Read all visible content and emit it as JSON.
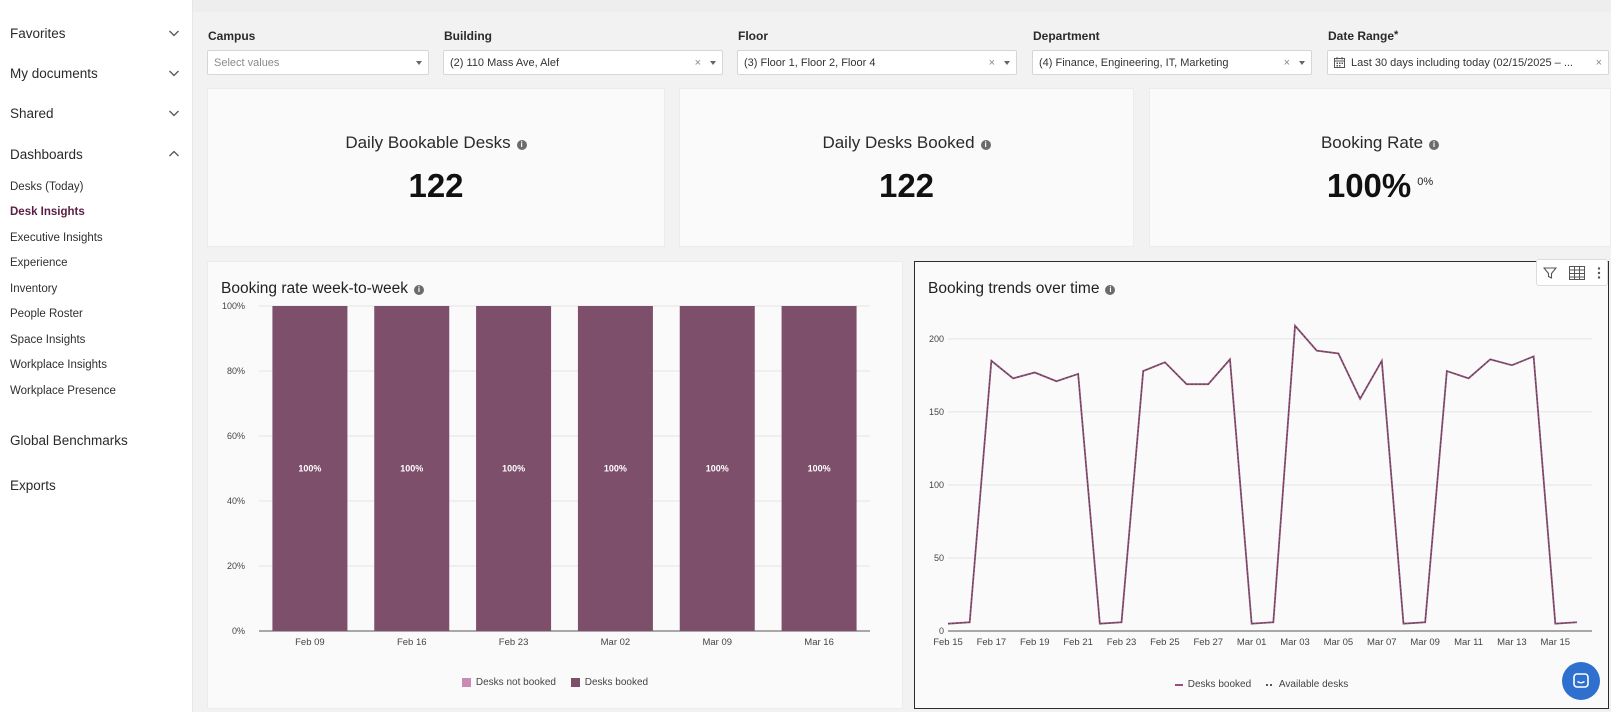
{
  "sidebar": {
    "sections": [
      {
        "label": "Favorites",
        "expanded": false
      },
      {
        "label": "My documents",
        "expanded": false
      },
      {
        "label": "Shared",
        "expanded": false
      },
      {
        "label": "Dashboards",
        "expanded": true
      }
    ],
    "dashboards": [
      "Desks (Today)",
      "Desk Insights",
      "Executive Insights",
      "Experience",
      "Inventory",
      "People Roster",
      "Space Insights",
      "Workplace Insights",
      "Workplace Presence"
    ],
    "active_dashboard": "Desk Insights",
    "global_benchmarks": "Global Benchmarks",
    "exports": "Exports"
  },
  "filters": [
    {
      "label": "Campus",
      "value": "",
      "placeholder": "Select values",
      "clearable": false
    },
    {
      "label": "Building",
      "value": "(2) 110 Mass Ave, Alef",
      "clearable": true
    },
    {
      "label": "Floor",
      "value": "(3) Floor 1, Floor 2, Floor 4",
      "clearable": true
    },
    {
      "label": "Department",
      "value": "(4) Finance, Engineering, IT, Marketing",
      "clearable": true
    },
    {
      "label": "Date Range",
      "required_mark": "*",
      "value": "Last 30 days including today (02/15/2025 – ...",
      "clearable": true
    }
  ],
  "kpis": [
    {
      "title": "Daily Bookable Desks",
      "value": "122"
    },
    {
      "title": "Daily Desks Booked",
      "value": "122"
    },
    {
      "title": "Booking Rate",
      "value": "100%",
      "delta": "0%"
    }
  ],
  "colors": {
    "desks_booked": "#7d4f6b",
    "desks_not_booked": "#c98bb2",
    "accent": "#5a1e44",
    "chat": "#2f6fce"
  },
  "charts": {
    "weekly": {
      "title": "Booking rate week-to-week"
    },
    "trend": {
      "title": "Booking trends over time"
    }
  },
  "chart_data": [
    {
      "type": "bar",
      "title": "Booking rate week-to-week",
      "categories": [
        "Feb 09",
        "Feb 16",
        "Feb 23",
        "Mar 02",
        "Mar 09",
        "Mar 16"
      ],
      "series": [
        {
          "name": "Desks not booked",
          "values": [
            0,
            0,
            0,
            0,
            0,
            0
          ]
        },
        {
          "name": "Desks booked",
          "values": [
            100,
            100,
            100,
            100,
            100,
            100
          ]
        }
      ],
      "data_labels": [
        "100%",
        "100%",
        "100%",
        "100%",
        "100%",
        "100%"
      ],
      "y_ticks": [
        "0%",
        "20%",
        "40%",
        "60%",
        "80%",
        "100%"
      ],
      "ylim": [
        0,
        100
      ],
      "stacked": true,
      "grid": true,
      "legend": "bottom"
    },
    {
      "type": "line",
      "title": "Booking trends over time",
      "x": [
        "Feb 15",
        "Feb 16",
        "Feb 17",
        "Feb 18",
        "Feb 19",
        "Feb 20",
        "Feb 21",
        "Feb 22",
        "Feb 23",
        "Feb 24",
        "Feb 25",
        "Feb 26",
        "Feb 27",
        "Feb 28",
        "Mar 01",
        "Mar 02",
        "Mar 03",
        "Mar 04",
        "Mar 05",
        "Mar 06",
        "Mar 07",
        "Mar 08",
        "Mar 09",
        "Mar 10",
        "Mar 11",
        "Mar 12",
        "Mar 13",
        "Mar 14",
        "Mar 15",
        "Mar 16"
      ],
      "x_ticks": [
        "Feb 15",
        "Feb 17",
        "Feb 19",
        "Feb 21",
        "Feb 23",
        "Feb 25",
        "Feb 27",
        "Mar 01",
        "Mar 03",
        "Mar 05",
        "Mar 07",
        "Mar 09",
        "Mar 11",
        "Mar 13",
        "Mar 15"
      ],
      "y_ticks": [
        0,
        50,
        100,
        150,
        200
      ],
      "ylim": [
        0,
        215
      ],
      "series": [
        {
          "name": "Desks booked",
          "style": "solid",
          "values": [
            5,
            6,
            185,
            173,
            177,
            171,
            176,
            5,
            6,
            178,
            184,
            169,
            169,
            186,
            5,
            6,
            209,
            192,
            190,
            159,
            185,
            5,
            6,
            178,
            173,
            186,
            182,
            188,
            5,
            6
          ]
        },
        {
          "name": "Available desks",
          "style": "dotted",
          "values": [
            5,
            6,
            185,
            173,
            177,
            171,
            176,
            5,
            6,
            178,
            184,
            169,
            169,
            186,
            5,
            6,
            209,
            192,
            190,
            159,
            185,
            5,
            6,
            178,
            173,
            186,
            182,
            188,
            5,
            6
          ]
        }
      ],
      "grid": true,
      "legend": "bottom"
    }
  ]
}
